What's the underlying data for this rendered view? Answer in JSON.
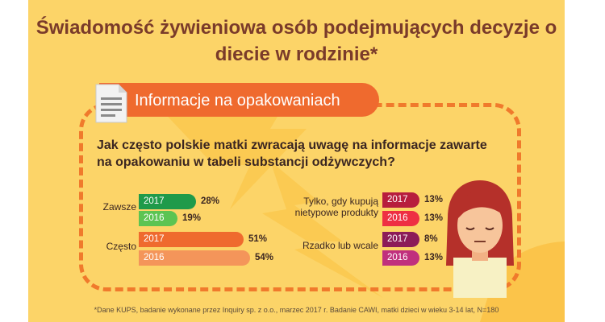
{
  "title": "Świadomość żywieniowa osób podejmujących decyzje o diecie w rodzinie*",
  "banner": {
    "label": "Informacje na opakowaniach",
    "icon": "document-icon"
  },
  "question": "Jak często polskie matki zwracają uwagę na informacje zawarte na opakowaniu w tabeli substancji odżywczych?",
  "footnote": "*Dane KUPS, badanie wykonane przez Inquiry sp. z o.o., marzec 2017 r. Badanie CAWI, matki dzieci w wieku 3-14 lat, N=180",
  "colors": {
    "background": "#fcd468",
    "accent": "#ef6a2e",
    "title": "#7a3b2a"
  },
  "chart_data": {
    "type": "bar",
    "orientation": "horizontal",
    "unit": "%",
    "groups": [
      {
        "category": "Zawsze",
        "bars": [
          {
            "year": "2017",
            "value": 28,
            "label": "28%",
            "color": "#1f9a4a"
          },
          {
            "year": "2016",
            "value": 19,
            "label": "19%",
            "color": "#5cc452"
          }
        ]
      },
      {
        "category": "Często",
        "bars": [
          {
            "year": "2017",
            "value": 51,
            "label": "51%",
            "color": "#ef6a2e"
          },
          {
            "year": "2016",
            "value": 54,
            "label": "54%",
            "color": "#f4955a"
          }
        ]
      },
      {
        "category": "Tylko, gdy kupują nietypowe produkty",
        "bars": [
          {
            "year": "2017",
            "value": 13,
            "label": "13%",
            "color": "#b71d3d"
          },
          {
            "year": "2016",
            "value": 13,
            "label": "13%",
            "color": "#ee2f43"
          }
        ]
      },
      {
        "category": "Rzadko lub wcale",
        "bars": [
          {
            "year": "2017",
            "value": 8,
            "label": "8%",
            "color": "#8c1b58"
          },
          {
            "year": "2016",
            "value": 13,
            "label": "13%",
            "color": "#c0307d"
          }
        ]
      }
    ]
  }
}
